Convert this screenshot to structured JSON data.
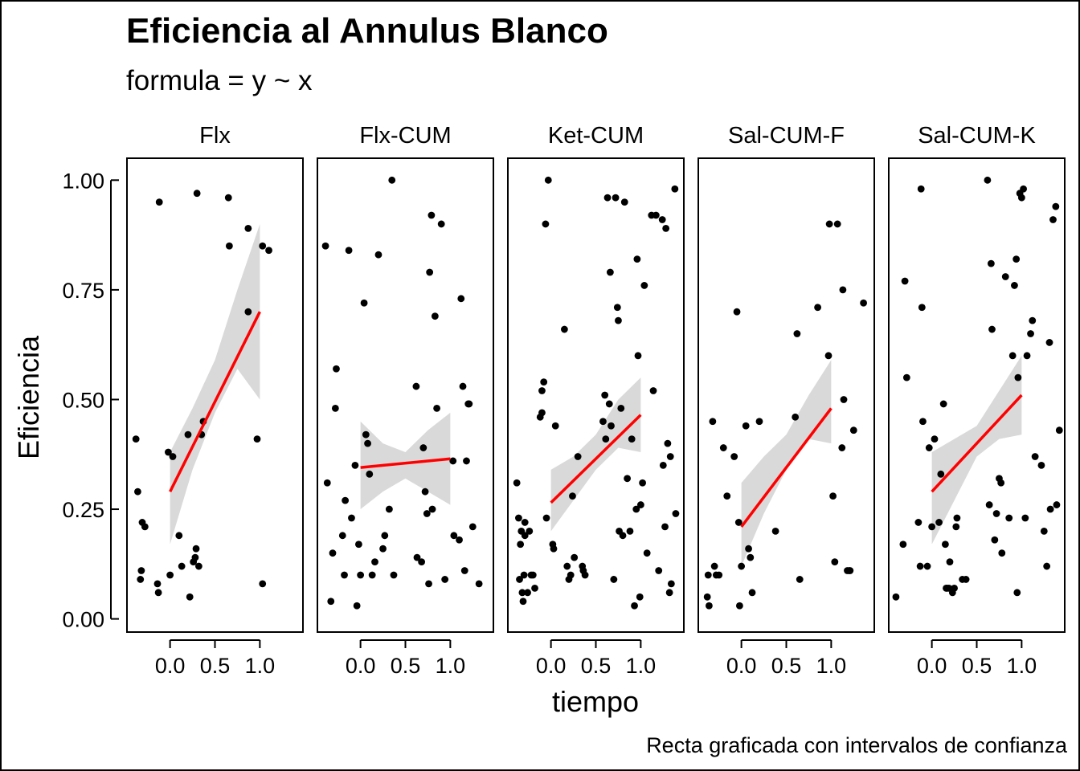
{
  "chart_data": {
    "type": "scatter",
    "title": "Eficiencia al Annulus Blanco",
    "subtitle": "formula = y ~ x",
    "xlabel": "tiempo",
    "ylabel": "Eficiencia",
    "caption": "Recta graficada con intervalos de confianza",
    "xlim": [
      -0.48,
      1.48
    ],
    "ylim": [
      -0.03,
      1.05
    ],
    "x_ticks": [
      0.0,
      0.5,
      1.0
    ],
    "x_tick_labels": [
      "0.0",
      "0.5",
      "1.0"
    ],
    "y_ticks": [
      0.0,
      0.25,
      0.5,
      0.75,
      1.0
    ],
    "y_tick_labels": [
      "0.00",
      "0.25",
      "0.50",
      "0.75",
      "1.00"
    ],
    "grid": false,
    "colors": {
      "points": "#000000",
      "fit_line": "#ff0000",
      "confidence_band": "#d9d9d9"
    },
    "panels": [
      {
        "name": "Flx",
        "fit": {
          "intercept": 0.29,
          "slope": 0.41
        },
        "band": [
          [
            0.0,
            0.17,
            0.38
          ],
          [
            0.25,
            0.34,
            0.48
          ],
          [
            0.5,
            0.47,
            0.59
          ],
          [
            0.75,
            0.57,
            0.75
          ],
          [
            1.0,
            0.5,
            0.9
          ]
        ],
        "points": [
          [
            -0.38,
            0.41
          ],
          [
            -0.36,
            0.29
          ],
          [
            -0.33,
            0.09
          ],
          [
            -0.32,
            0.11
          ],
          [
            -0.31,
            0.22
          ],
          [
            -0.28,
            0.21
          ],
          [
            -0.12,
            0.95
          ],
          [
            -0.13,
            0.06
          ],
          [
            -0.14,
            0.08
          ],
          [
            -0.02,
            0.38
          ],
          [
            0.0,
            0.1
          ],
          [
            0.03,
            0.37
          ],
          [
            0.1,
            0.19
          ],
          [
            0.13,
            0.12
          ],
          [
            0.2,
            0.42
          ],
          [
            0.22,
            0.05
          ],
          [
            0.26,
            0.13
          ],
          [
            0.28,
            0.14
          ],
          [
            0.29,
            0.16
          ],
          [
            0.3,
            0.97
          ],
          [
            0.32,
            0.12
          ],
          [
            0.35,
            0.42
          ],
          [
            0.37,
            0.45
          ],
          [
            0.65,
            0.96
          ],
          [
            0.66,
            0.85
          ],
          [
            0.87,
            0.89
          ],
          [
            0.87,
            0.7
          ],
          [
            0.97,
            0.41
          ],
          [
            1.03,
            0.85
          ],
          [
            1.03,
            0.08
          ],
          [
            1.1,
            0.84
          ]
        ]
      },
      {
        "name": "Flx-CUM",
        "fit": {
          "intercept": 0.345,
          "slope": 0.02
        },
        "band": [
          [
            0.0,
            0.25,
            0.45
          ],
          [
            0.25,
            0.29,
            0.4
          ],
          [
            0.5,
            0.32,
            0.38
          ],
          [
            0.75,
            0.29,
            0.43
          ],
          [
            1.0,
            0.26,
            0.47
          ]
        ],
        "points": [
          [
            -0.39,
            0.85
          ],
          [
            -0.37,
            0.31
          ],
          [
            -0.33,
            0.04
          ],
          [
            -0.31,
            0.15
          ],
          [
            -0.28,
            0.48
          ],
          [
            -0.27,
            0.57
          ],
          [
            -0.2,
            0.19
          ],
          [
            -0.18,
            0.1
          ],
          [
            -0.17,
            0.27
          ],
          [
            -0.13,
            0.84
          ],
          [
            -0.1,
            0.23
          ],
          [
            -0.06,
            0.35
          ],
          [
            -0.04,
            0.03
          ],
          [
            -0.02,
            0.17
          ],
          [
            0.0,
            0.1
          ],
          [
            0.04,
            0.72
          ],
          [
            0.06,
            0.42
          ],
          [
            0.08,
            0.4
          ],
          [
            0.1,
            0.33
          ],
          [
            0.13,
            0.1
          ],
          [
            0.16,
            0.13
          ],
          [
            0.2,
            0.83
          ],
          [
            0.25,
            0.16
          ],
          [
            0.27,
            0.19
          ],
          [
            0.32,
            0.25
          ],
          [
            0.35,
            1.0
          ],
          [
            0.37,
            0.1
          ],
          [
            0.62,
            0.53
          ],
          [
            0.63,
            0.14
          ],
          [
            0.68,
            0.13
          ],
          [
            0.7,
            0.39
          ],
          [
            0.72,
            0.29
          ],
          [
            0.74,
            0.24
          ],
          [
            0.76,
            0.08
          ],
          [
            0.77,
            0.79
          ],
          [
            0.79,
            0.92
          ],
          [
            0.8,
            0.25
          ],
          [
            0.83,
            0.69
          ],
          [
            0.85,
            0.48
          ],
          [
            0.9,
            0.9
          ],
          [
            0.94,
            0.09
          ],
          [
            1.03,
            0.36
          ],
          [
            1.04,
            0.19
          ],
          [
            1.1,
            0.18
          ],
          [
            1.12,
            0.73
          ],
          [
            1.14,
            0.53
          ],
          [
            1.16,
            0.11
          ],
          [
            1.18,
            0.36
          ],
          [
            1.2,
            0.49
          ],
          [
            1.21,
            0.49
          ],
          [
            1.25,
            0.21
          ],
          [
            1.32,
            0.08
          ]
        ]
      },
      {
        "name": "Ket-CUM",
        "fit": {
          "intercept": 0.265,
          "slope": 0.2
        },
        "band": [
          [
            0.0,
            0.2,
            0.34
          ],
          [
            0.25,
            0.27,
            0.37
          ],
          [
            0.5,
            0.34,
            0.42
          ],
          [
            0.75,
            0.39,
            0.5
          ],
          [
            1.0,
            0.38,
            0.55
          ]
        ],
        "points": [
          [
            -0.38,
            0.31
          ],
          [
            -0.36,
            0.23
          ],
          [
            -0.35,
            0.09
          ],
          [
            -0.34,
            0.17
          ],
          [
            -0.33,
            0.2
          ],
          [
            -0.32,
            0.06
          ],
          [
            -0.31,
            0.04
          ],
          [
            -0.3,
            0.1
          ],
          [
            -0.29,
            0.19
          ],
          [
            -0.29,
            0.22
          ],
          [
            -0.26,
            0.06
          ],
          [
            -0.24,
            0.2
          ],
          [
            -0.22,
            0.1
          ],
          [
            -0.2,
            0.1
          ],
          [
            -0.18,
            0.07
          ],
          [
            -0.12,
            0.46
          ],
          [
            -0.1,
            0.47
          ],
          [
            -0.1,
            0.52
          ],
          [
            -0.08,
            0.54
          ],
          [
            -0.06,
            0.9
          ],
          [
            -0.05,
            0.23
          ],
          [
            -0.03,
            1.0
          ],
          [
            0.02,
            0.17
          ],
          [
            0.03,
            0.16
          ],
          [
            0.05,
            0.44
          ],
          [
            0.15,
            0.66
          ],
          [
            0.18,
            0.12
          ],
          [
            0.2,
            0.09
          ],
          [
            0.22,
            0.1
          ],
          [
            0.24,
            0.28
          ],
          [
            0.26,
            0.14
          ],
          [
            0.3,
            0.37
          ],
          [
            0.35,
            0.12
          ],
          [
            0.36,
            0.11
          ],
          [
            0.38,
            0.1
          ],
          [
            0.58,
            0.45
          ],
          [
            0.6,
            0.51
          ],
          [
            0.61,
            0.41
          ],
          [
            0.63,
            0.96
          ],
          [
            0.65,
            0.49
          ],
          [
            0.66,
            0.79
          ],
          [
            0.67,
            0.44
          ],
          [
            0.7,
            0.09
          ],
          [
            0.72,
            0.96
          ],
          [
            0.74,
            0.71
          ],
          [
            0.75,
            0.68
          ],
          [
            0.76,
            0.2
          ],
          [
            0.78,
            0.48
          ],
          [
            0.8,
            0.19
          ],
          [
            0.82,
            0.95
          ],
          [
            0.85,
            0.32
          ],
          [
            0.88,
            0.2
          ],
          [
            0.9,
            0.41
          ],
          [
            0.93,
            0.03
          ],
          [
            0.95,
            0.25
          ],
          [
            0.96,
            0.82
          ],
          [
            0.97,
            0.6
          ],
          [
            0.99,
            0.05
          ],
          [
            1.0,
            0.26
          ],
          [
            1.02,
            0.31
          ],
          [
            1.04,
            0.76
          ],
          [
            1.07,
            0.15
          ],
          [
            1.12,
            0.92
          ],
          [
            1.14,
            0.52
          ],
          [
            1.17,
            0.92
          ],
          [
            1.2,
            0.11
          ],
          [
            1.24,
            0.91
          ],
          [
            1.25,
            0.35
          ],
          [
            1.27,
            0.21
          ],
          [
            1.28,
            0.89
          ],
          [
            1.3,
            0.4
          ],
          [
            1.32,
            0.06
          ],
          [
            1.33,
            0.37
          ],
          [
            1.34,
            0.08
          ],
          [
            1.38,
            0.98
          ],
          [
            1.39,
            0.24
          ]
        ]
      },
      {
        "name": "Sal-CUM-F",
        "fit": {
          "intercept": 0.21,
          "slope": 0.27
        },
        "band": [
          [
            0.0,
            0.12,
            0.31
          ],
          [
            0.25,
            0.24,
            0.37
          ],
          [
            0.5,
            0.34,
            0.42
          ],
          [
            0.75,
            0.41,
            0.51
          ],
          [
            1.0,
            0.4,
            0.59
          ]
        ],
        "points": [
          [
            -0.38,
            0.05
          ],
          [
            -0.37,
            0.1
          ],
          [
            -0.36,
            0.03
          ],
          [
            -0.32,
            0.45
          ],
          [
            -0.3,
            0.12
          ],
          [
            -0.28,
            0.1
          ],
          [
            -0.25,
            0.1
          ],
          [
            -0.2,
            0.39
          ],
          [
            -0.16,
            0.28
          ],
          [
            -0.08,
            0.37
          ],
          [
            -0.05,
            0.7
          ],
          [
            -0.03,
            0.22
          ],
          [
            -0.02,
            0.03
          ],
          [
            0.0,
            0.12
          ],
          [
            0.05,
            0.44
          ],
          [
            0.08,
            0.16
          ],
          [
            0.1,
            0.14
          ],
          [
            0.12,
            0.06
          ],
          [
            0.2,
            0.45
          ],
          [
            0.38,
            0.2
          ],
          [
            0.6,
            0.46
          ],
          [
            0.62,
            0.65
          ],
          [
            0.65,
            0.09
          ],
          [
            0.85,
            0.71
          ],
          [
            0.97,
            0.6
          ],
          [
            0.98,
            0.9
          ],
          [
            1.02,
            0.28
          ],
          [
            1.04,
            0.13
          ],
          [
            1.07,
            0.9
          ],
          [
            1.12,
            0.39
          ],
          [
            1.13,
            0.75
          ],
          [
            1.14,
            0.5
          ],
          [
            1.18,
            0.11
          ],
          [
            1.2,
            0.11
          ],
          [
            1.21,
            0.11
          ],
          [
            1.25,
            0.43
          ],
          [
            1.36,
            0.72
          ]
        ]
      },
      {
        "name": "Sal-CUM-K",
        "fit": {
          "intercept": 0.29,
          "slope": 0.22
        },
        "band": [
          [
            0.0,
            0.17,
            0.38
          ],
          [
            0.25,
            0.27,
            0.41
          ],
          [
            0.5,
            0.37,
            0.44
          ],
          [
            0.75,
            0.41,
            0.52
          ],
          [
            1.0,
            0.42,
            0.6
          ]
        ],
        "points": [
          [
            -0.4,
            0.05
          ],
          [
            -0.32,
            0.17
          ],
          [
            -0.3,
            0.77
          ],
          [
            -0.28,
            0.55
          ],
          [
            -0.15,
            0.22
          ],
          [
            -0.13,
            0.12
          ],
          [
            -0.12,
            0.98
          ],
          [
            -0.11,
            0.71
          ],
          [
            -0.1,
            0.45
          ],
          [
            -0.05,
            0.12
          ],
          [
            -0.03,
            0.39
          ],
          [
            0.0,
            0.21
          ],
          [
            0.03,
            0.41
          ],
          [
            0.08,
            0.22
          ],
          [
            0.1,
            0.33
          ],
          [
            0.13,
            0.49
          ],
          [
            0.15,
            0.17
          ],
          [
            0.16,
            0.07
          ],
          [
            0.17,
            0.07
          ],
          [
            0.19,
            0.07
          ],
          [
            0.2,
            0.13
          ],
          [
            0.23,
            0.06
          ],
          [
            0.25,
            0.07
          ],
          [
            0.27,
            0.21
          ],
          [
            0.28,
            0.23
          ],
          [
            0.34,
            0.09
          ],
          [
            0.38,
            0.09
          ],
          [
            0.62,
            1.0
          ],
          [
            0.64,
            0.26
          ],
          [
            0.66,
            0.81
          ],
          [
            0.67,
            0.66
          ],
          [
            0.7,
            0.18
          ],
          [
            0.72,
            0.24
          ],
          [
            0.75,
            0.32
          ],
          [
            0.77,
            0.31
          ],
          [
            0.78,
            0.15
          ],
          [
            0.82,
            0.78
          ],
          [
            0.86,
            0.23
          ],
          [
            0.9,
            0.6
          ],
          [
            0.92,
            0.76
          ],
          [
            0.94,
            0.82
          ],
          [
            0.95,
            0.06
          ],
          [
            0.96,
            0.55
          ],
          [
            0.98,
            0.97
          ],
          [
            1.0,
            0.96
          ],
          [
            1.02,
            0.98
          ],
          [
            1.04,
            0.23
          ],
          [
            1.06,
            0.6
          ],
          [
            1.1,
            0.65
          ],
          [
            1.12,
            0.68
          ],
          [
            1.15,
            0.37
          ],
          [
            1.22,
            0.35
          ],
          [
            1.25,
            0.2
          ],
          [
            1.28,
            0.12
          ],
          [
            1.31,
            0.63
          ],
          [
            1.32,
            0.25
          ],
          [
            1.35,
            0.91
          ],
          [
            1.38,
            0.94
          ],
          [
            1.39,
            0.26
          ],
          [
            1.42,
            0.43
          ]
        ]
      }
    ]
  }
}
